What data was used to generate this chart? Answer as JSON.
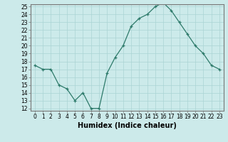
{
  "xlabel": "Humidex (Indice chaleur)",
  "x": [
    0,
    1,
    2,
    3,
    4,
    5,
    6,
    7,
    8,
    9,
    10,
    11,
    12,
    13,
    14,
    15,
    16,
    17,
    18,
    19,
    20,
    21,
    22,
    23
  ],
  "y": [
    17.5,
    17.0,
    17.0,
    15.0,
    14.5,
    13.0,
    14.0,
    12.0,
    12.0,
    16.5,
    18.5,
    20.0,
    22.5,
    23.5,
    24.0,
    25.0,
    25.5,
    24.5,
    23.0,
    21.5,
    20.0,
    19.0,
    17.5,
    17.0
  ],
  "line_color": "#2d7a6a",
  "bg_color": "#cceaea",
  "grid_color": "#aad4d4",
  "ylim_min": 12,
  "ylim_max": 25,
  "xlim_min": -0.5,
  "xlim_max": 23.5,
  "yticks": [
    12,
    13,
    14,
    15,
    16,
    17,
    18,
    19,
    20,
    21,
    22,
    23,
    24,
    25
  ],
  "xticks": [
    0,
    1,
    2,
    3,
    4,
    5,
    6,
    7,
    8,
    9,
    10,
    11,
    12,
    13,
    14,
    15,
    16,
    17,
    18,
    19,
    20,
    21,
    22,
    23
  ],
  "tick_fontsize": 5.5,
  "xlabel_fontsize": 7,
  "marker": "+"
}
